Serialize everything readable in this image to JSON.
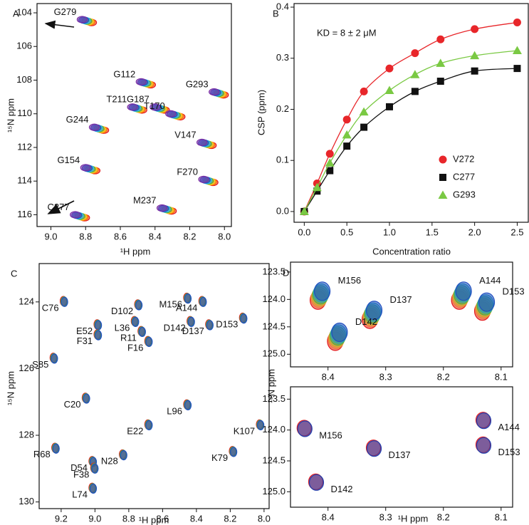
{
  "chart_data": [
    {
      "panel": "A",
      "type": "scatter",
      "xlabel": "¹H ppm",
      "ylabel": "¹⁵N ppm",
      "labels": [
        "G279",
        "G112",
        "G293",
        "G187",
        "T211",
        "T170",
        "G244",
        "V147",
        "G154",
        "F270",
        "M237",
        "C277"
      ],
      "x": [
        8.82,
        8.48,
        8.06,
        8.4,
        8.53,
        8.31,
        8.75,
        8.13,
        8.8,
        8.12,
        8.36,
        8.86
      ],
      "y": [
        104.4,
        108.1,
        108.7,
        109.6,
        109.6,
        110.0,
        110.8,
        111.7,
        113.2,
        113.9,
        115.6,
        116.0
      ],
      "colors": [
        "#e41a1c",
        "#ff7f00",
        "#f2d21b",
        "#4daf4a",
        "#29b6f6",
        "#1f4fc0",
        "#7b2fa5"
      ],
      "xlim": [
        9.08,
        7.96
      ],
      "ylim": [
        116.7,
        103.45
      ],
      "xticks": [
        {
          "value": 9,
          "label": "9.0"
        },
        8.8,
        8.6,
        8.4,
        8.2,
        {
          "value": 8,
          "label": "8.0"
        }
      ],
      "yticks": [
        104,
        106,
        108,
        110,
        112,
        114,
        116
      ]
    },
    {
      "panel": "B",
      "type": "line",
      "xlabel": "Concentration ratio",
      "ylabel": "CSP (ppm)",
      "annotation": "KD = 8 ± 2 μM",
      "legend": "lower right",
      "x": [
        0,
        0.15,
        0.3,
        0.5,
        0.7,
        1.0,
        1.3,
        1.6,
        2.0,
        2.5
      ],
      "series": [
        {
          "name": "V272",
          "color": "#e8262a",
          "marker": "circle",
          "values": [
            0,
            0.055,
            0.113,
            0.18,
            0.235,
            0.28,
            0.31,
            0.337,
            0.357,
            0.37
          ]
        },
        {
          "name": "C277",
          "color": "#111111",
          "marker": "square",
          "values": [
            0,
            0.04,
            0.08,
            0.128,
            0.165,
            0.205,
            0.235,
            0.255,
            0.275,
            0.28
          ]
        },
        {
          "name": "G293",
          "color": "#7ac943",
          "marker": "triangle",
          "values": [
            0,
            0.047,
            0.095,
            0.15,
            0.195,
            0.237,
            0.268,
            0.29,
            0.305,
            0.315
          ]
        }
      ],
      "xlim": [
        -0.12,
        2.63
      ],
      "ylim": [
        -0.021,
        0.407
      ],
      "xticks": [
        {
          "value": 0,
          "label": "0.0"
        },
        0.5,
        {
          "value": 1,
          "label": "1.0"
        },
        1.5,
        {
          "value": 2,
          "label": "2.0"
        },
        2.5
      ],
      "yticks": [
        {
          "value": 0,
          "label": "0.0"
        },
        0.1,
        0.2,
        0.3,
        0.4
      ]
    },
    {
      "panel": "C",
      "type": "scatter",
      "xlabel": "¹H ppm",
      "ylabel": "¹⁵N ppm",
      "labels": [
        "C76",
        "D102",
        "M156",
        "A144",
        "E52",
        "L36",
        "F31",
        "R11",
        "F16",
        "D142",
        "D137",
        "D153",
        "S85",
        "C20",
        "L96",
        "E22",
        "K107",
        "R68",
        "N28",
        "K79",
        "D54",
        "F38",
        "L74"
      ],
      "x": [
        9.18,
        8.74,
        8.45,
        8.36,
        8.98,
        8.76,
        8.98,
        8.72,
        8.68,
        8.43,
        8.32,
        8.12,
        9.24,
        9.05,
        8.45,
        8.68,
        8.02,
        9.23,
        8.83,
        8.18,
        9.01,
        9.0,
        9.01
      ],
      "y": [
        124.0,
        124.1,
        123.9,
        124.0,
        124.7,
        124.6,
        125.0,
        124.9,
        125.2,
        124.6,
        124.7,
        124.5,
        125.7,
        126.9,
        127.1,
        127.7,
        127.7,
        128.4,
        128.6,
        128.5,
        128.8,
        129.0,
        129.6
      ],
      "colors": [
        "#e41a1c",
        "#4daf4a",
        "#1f4fc0"
      ],
      "xlim": [
        9.33,
        7.97
      ],
      "ylim": [
        130.2,
        122.85
      ],
      "xticks": [
        9.2,
        {
          "value": 9,
          "label": "9.0"
        },
        8.8,
        8.6,
        8.4,
        8.2,
        {
          "value": 8,
          "label": "8.0"
        }
      ],
      "yticks": [
        124,
        126,
        128,
        130
      ]
    },
    {
      "panel": "D",
      "type": "scatter",
      "ylabel": "¹⁵N ppm",
      "labels": [
        "M156",
        "D137",
        "D142",
        "A144",
        "D153"
      ],
      "x": [
        8.41,
        8.32,
        8.38,
        8.165,
        8.125
      ],
      "y": [
        123.85,
        124.2,
        124.6,
        123.85,
        124.05
      ],
      "colors": [
        "#e41a1c",
        "#f07f3c",
        "#c9b02a",
        "#4daf4a",
        "#29a3b6",
        "#1f4fc0"
      ],
      "xlim": [
        8.465,
        8.08
      ],
      "ylim": [
        125.23,
        123.32
      ],
      "xticks": [
        8.4,
        8.3,
        8.2,
        8.1
      ],
      "yticks": [
        123.5,
        {
          "value": 124,
          "label": "124.0"
        },
        124.5,
        {
          "value": 125,
          "label": "125.0"
        }
      ]
    },
    {
      "type": "scatter",
      "xlabel": "¹H ppm",
      "labels": [
        "M156",
        "D137",
        "D142",
        "A144",
        "D153"
      ],
      "x": [
        8.44,
        8.32,
        8.42,
        8.13,
        8.13
      ],
      "y": [
        123.98,
        124.3,
        124.85,
        123.85,
        124.25
      ],
      "colors": [
        "#e41a1c",
        "#1f3fb0"
      ],
      "xlim": [
        8.465,
        8.08
      ],
      "ylim": [
        125.25,
        123.3
      ],
      "xticks": [
        8.4,
        8.3,
        8.2,
        8.1
      ],
      "yticks": [
        123.5,
        {
          "value": 124,
          "label": "124.0"
        },
        124.5,
        {
          "value": 125,
          "label": "125.0"
        }
      ]
    }
  ]
}
